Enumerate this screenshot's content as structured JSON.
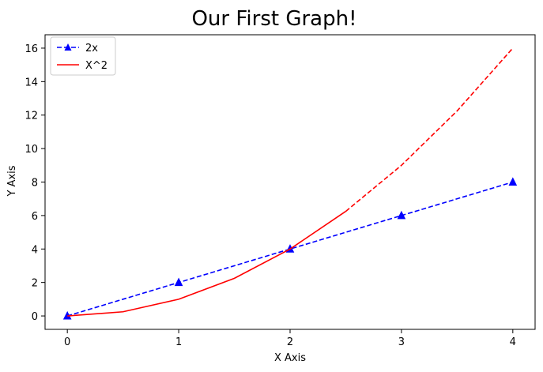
{
  "chart_data": {
    "type": "line",
    "title": "Our First Graph!",
    "xlabel": "X Axis",
    "ylabel": "Y Axis",
    "xlim": [
      -0.2,
      4.2
    ],
    "ylim": [
      -0.8,
      16.8
    ],
    "xticks": [
      0,
      1,
      2,
      3,
      4
    ],
    "yticks": [
      0,
      2,
      4,
      6,
      8,
      10,
      12,
      14,
      16
    ],
    "grid": false,
    "legend_position": "top-left",
    "series": [
      {
        "name": "2x",
        "color": "#0000ff",
        "linestyle": "dashed",
        "marker": "triangle-up",
        "x": [
          0,
          1,
          2,
          3,
          4
        ],
        "y": [
          0,
          2,
          4,
          6,
          8
        ]
      },
      {
        "name": "X^2",
        "color": "#ff0000",
        "linestyle": "solid",
        "marker": "none",
        "x": [
          0,
          0.5,
          1,
          1.5,
          2,
          2.5
        ],
        "y": [
          0,
          0.25,
          1,
          2.25,
          4,
          6.25
        ]
      },
      {
        "name": "",
        "color": "#ff0000",
        "linestyle": "dashed",
        "marker": "none",
        "in_legend": false,
        "x": [
          2.5,
          3,
          3.5,
          4
        ],
        "y": [
          6.25,
          9,
          12.25,
          16
        ]
      }
    ]
  }
}
